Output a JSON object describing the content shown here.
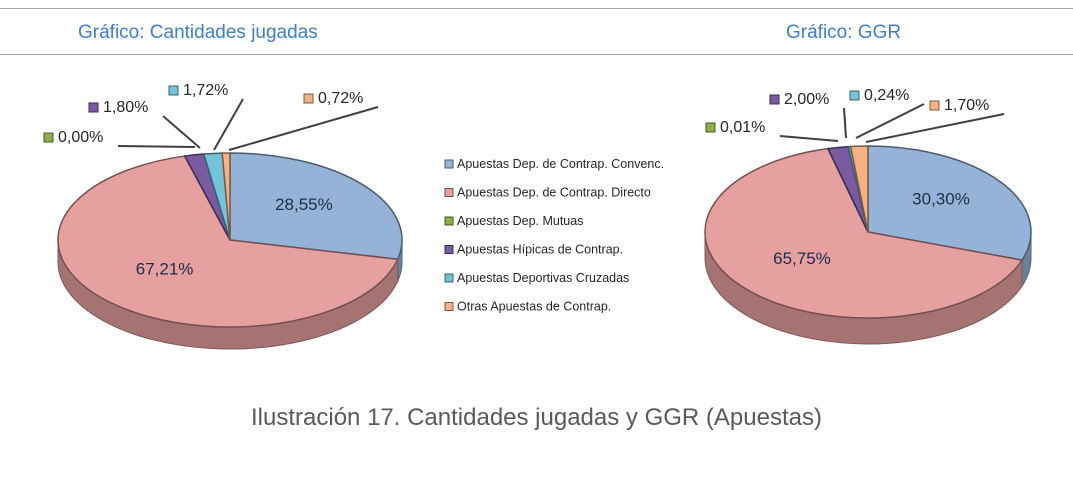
{
  "titles": {
    "left": "Gráfico: Cantidades jugadas",
    "right": "Gráfico: GGR"
  },
  "caption": "Ilustración 17. Cantidades jugadas y GGR (Apuestas)",
  "colors": {
    "Apuestas Dep. de Contrap. Convenc.": "#95b3d7",
    "Apuestas Dep. de Contrap. Directo": "#e6a0a0",
    "Apuestas Dep. Mutuas": "#8cb04a",
    "Apuestas Hípicas de Contrap.": "#7a5aa0",
    "Apuestas Deportivas Cruzadas": "#74c3d8",
    "Otras Apuestas de Contrap.": "#f4b183"
  },
  "chart_data": [
    {
      "type": "pie",
      "title": "Gráfico: Cantidades jugadas",
      "categories": [
        "Apuestas Dep. de Contrap. Convenc.",
        "Apuestas Dep. de Contrap. Directo",
        "Apuestas Dep. Mutuas",
        "Apuestas Hípicas de Contrap.",
        "Apuestas Deportivas Cruzadas",
        "Otras Apuestas de Contrap."
      ],
      "values": [
        28.55,
        67.21,
        0.0,
        1.8,
        1.72,
        0.72
      ],
      "labels": [
        "28,55%",
        "67,21%",
        "0,00%",
        "1,80%",
        "1,72%",
        "0,72%"
      ]
    },
    {
      "type": "pie",
      "title": "Gráfico: GGR",
      "categories": [
        "Apuestas Dep. de Contrap. Convenc.",
        "Apuestas Dep. de Contrap. Directo",
        "Apuestas Dep. Mutuas",
        "Apuestas Hípicas de Contrap.",
        "Apuestas Deportivas Cruzadas",
        "Otras Apuestas de Contrap."
      ],
      "values": [
        30.3,
        65.75,
        0.01,
        2.0,
        0.24,
        1.7
      ],
      "labels": [
        "30,30%",
        "65,75%",
        "0,01%",
        "2,00%",
        "0,24%",
        "1,70%"
      ]
    }
  ],
  "legend": {
    "position": "center",
    "items": [
      "Apuestas Dep. de Contrap. Convenc.",
      "Apuestas Dep. de Contrap. Directo",
      "Apuestas Dep. Mutuas",
      "Apuestas Hípicas de Contrap.",
      "Apuestas Deportivas Cruzadas",
      "Otras Apuestas de Contrap."
    ]
  }
}
